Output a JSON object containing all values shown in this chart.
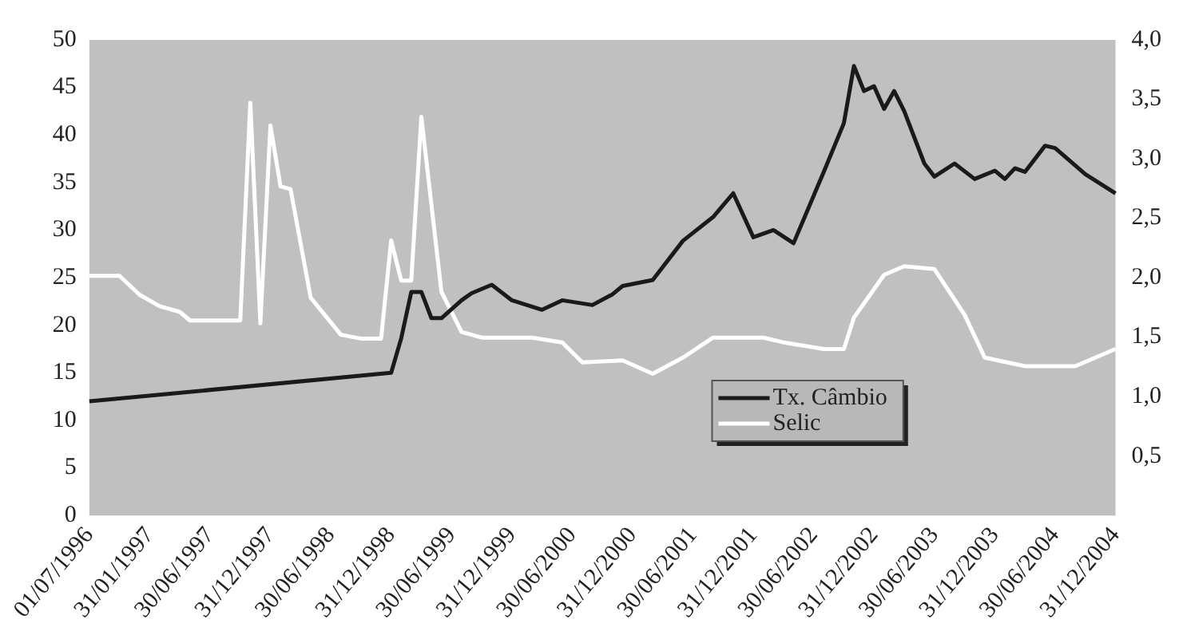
{
  "chart_data": {
    "type": "line",
    "categories": [
      "01/07/1996",
      null,
      null,
      null,
      null,
      null,
      "31/01/1997",
      null,
      null,
      null,
      null,
      null,
      "30/06/1997",
      null,
      null,
      null,
      null,
      null,
      "31/12/1997",
      null,
      null,
      null,
      null,
      null,
      "30/06/1998",
      null,
      null,
      null,
      null,
      null,
      "31/12/1998",
      null,
      null,
      null,
      null,
      null,
      "30/06/1999",
      null,
      null,
      null,
      null,
      null,
      "31/12/1999",
      null,
      null,
      null,
      null,
      null,
      "30/06/2000",
      null,
      null,
      null,
      null,
      null,
      "31/12/2000",
      null,
      null,
      null,
      null,
      null,
      "30/06/2001",
      null,
      null,
      null,
      null,
      null,
      "31/12/2001",
      null,
      null,
      null,
      null,
      null,
      "30/06/2002",
      null,
      null,
      null,
      null,
      null,
      "31/12/2002",
      null,
      null,
      null,
      null,
      null,
      "30/06/2003",
      null,
      null,
      null,
      null,
      null,
      "31/12/2003",
      null,
      null,
      null,
      null,
      null,
      "30/06/2004",
      null,
      null,
      null,
      null,
      null,
      "31/12/2004"
    ],
    "series": [
      {
        "name": "Tx. Câmbio",
        "color": "#1a1a1a",
        "axis": "y2",
        "values": [
          0.96,
          null,
          null,
          null,
          null,
          null,
          null,
          null,
          null,
          null,
          null,
          null,
          null,
          null,
          null,
          null,
          null,
          null,
          null,
          null,
          null,
          null,
          null,
          null,
          null,
          null,
          null,
          null,
          null,
          null,
          1.2,
          1.49,
          1.88,
          1.88,
          1.66,
          1.66,
          null,
          1.81,
          1.87,
          null,
          1.94,
          null,
          1.81,
          null,
          null,
          1.73,
          null,
          1.81,
          null,
          null,
          1.77,
          null,
          1.86,
          1.93,
          null,
          null,
          1.98,
          null,
          null,
          2.31,
          null,
          null,
          2.51,
          null,
          2.71,
          null,
          2.34,
          null,
          2.4,
          null,
          2.29,
          null,
          null,
          2.89,
          null,
          3.3,
          3.78,
          3.57,
          3.61,
          3.42,
          3.57,
          3.4,
          null,
          2.96,
          2.85,
          null,
          2.96,
          null,
          2.83,
          null,
          2.9,
          2.83,
          2.92,
          2.89,
          null,
          3.11,
          3.09,
          null,
          null,
          2.87,
          null,
          null,
          2.71
        ]
      },
      {
        "name": "Selic",
        "color": "#ffffff",
        "values": [
          25.2,
          null,
          null,
          25.2,
          null,
          23.2,
          null,
          22,
          null,
          21.4,
          20.5,
          null,
          null,
          null,
          null,
          20.5,
          43.4,
          20.2,
          41,
          34.6,
          34.3,
          null,
          22.9,
          null,
          null,
          19,
          null,
          18.6,
          null,
          18.6,
          28.9,
          24.7,
          24.7,
          41.9,
          null,
          23.5,
          null,
          19.3,
          null,
          18.7,
          null,
          null,
          null,
          null,
          18.7,
          null,
          null,
          18.2,
          null,
          16.1,
          null,
          null,
          null,
          16.3,
          null,
          null,
          14.9,
          null,
          null,
          16.6,
          null,
          null,
          18.7,
          null,
          null,
          null,
          null,
          18.7,
          null,
          18.2,
          null,
          null,
          null,
          17.5,
          null,
          17.5,
          20.8,
          null,
          null,
          25.3,
          null,
          26.2,
          null,
          null,
          25.9,
          null,
          null,
          21.1,
          null,
          16.6,
          null,
          null,
          null,
          15.7,
          null,
          null,
          null,
          null,
          15.7,
          null,
          null,
          null,
          17.5
        ]
      }
    ],
    "ylim": [
      0,
      50
    ],
    "yticks": [
      0,
      5,
      10,
      15,
      20,
      25,
      30,
      35,
      40,
      45,
      50
    ],
    "y2lim": [
      0,
      4
    ],
    "y2ticks": [
      {
        "value": 0,
        "label": null
      },
      {
        "value": 0.5,
        "label": "0,5"
      },
      {
        "value": 1,
        "label": "1,0"
      },
      {
        "value": 1.5,
        "label": "1,5"
      },
      {
        "value": 2,
        "label": "2,0"
      },
      {
        "value": 2.5,
        "label": "2,5"
      },
      {
        "value": 3,
        "label": "3,0"
      },
      {
        "value": 3.5,
        "label": "3,5"
      },
      {
        "value": 4,
        "label": "4,0"
      }
    ],
    "legend": "bottom",
    "marker": "none"
  }
}
